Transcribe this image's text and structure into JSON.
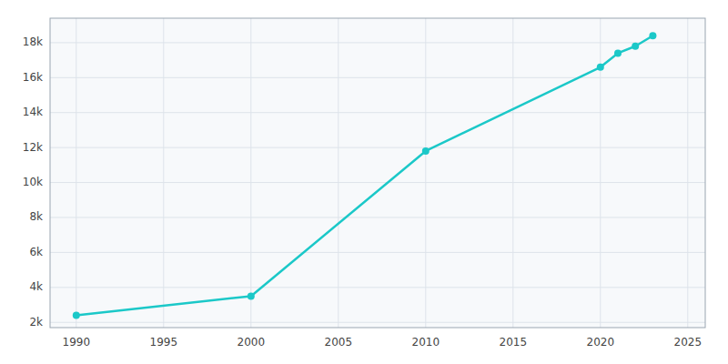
{
  "chart_data": {
    "type": "line",
    "x": [
      1990,
      2000,
      2010,
      2020,
      2021,
      2022,
      2023
    ],
    "values": [
      2400,
      3500,
      11800,
      16600,
      17400,
      17800,
      18400
    ],
    "color": "#1BC8C8",
    "marker": "circle",
    "xlim": [
      1988.5,
      2026
    ],
    "ylim": [
      1700,
      19400
    ],
    "xticks": [
      1990,
      1995,
      2000,
      2005,
      2010,
      2015,
      2020,
      2025
    ],
    "yticks": [
      {
        "value": 2000,
        "label": "2k"
      },
      {
        "value": 4000,
        "label": "4k"
      },
      {
        "value": 6000,
        "label": "6k"
      },
      {
        "value": 8000,
        "label": "8k"
      },
      {
        "value": 10000,
        "label": "10k"
      },
      {
        "value": 12000,
        "label": "12k"
      },
      {
        "value": 14000,
        "label": "14k"
      },
      {
        "value": 16000,
        "label": "16k"
      },
      {
        "value": 18000,
        "label": "18k"
      }
    ],
    "grid": true
  }
}
